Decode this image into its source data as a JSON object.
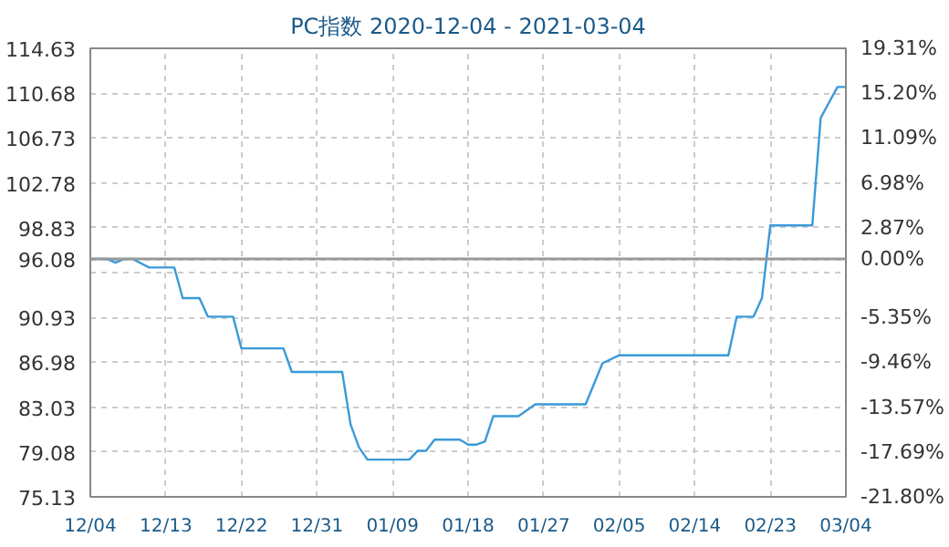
{
  "chart_data": {
    "type": "line",
    "title": "PC指数 2020-12-04 - 2021-03-04",
    "x": [
      "2020-12-04",
      "2020-12-06",
      "2020-12-07",
      "2020-12-08",
      "2020-12-09",
      "2020-12-11",
      "2020-12-14",
      "2020-12-15",
      "2020-12-17",
      "2020-12-18",
      "2020-12-21",
      "2020-12-22",
      "2020-12-27",
      "2020-12-28",
      "2021-01-03",
      "2021-01-04",
      "2021-01-05",
      "2021-01-06",
      "2021-01-11",
      "2021-01-12",
      "2021-01-13",
      "2021-01-14",
      "2021-01-17",
      "2021-01-18",
      "2021-01-19",
      "2021-01-20",
      "2021-01-21",
      "2021-01-24",
      "2021-01-26",
      "2021-02-01",
      "2021-02-03",
      "2021-02-05",
      "2021-02-18",
      "2021-02-19",
      "2021-02-21",
      "2021-02-22",
      "2021-02-23",
      "2021-02-28",
      "2021-03-01",
      "2021-03-02",
      "2021-03-03",
      "2021-03-04"
    ],
    "series": [
      {
        "color": "#3a9ad9",
        "values": [
          96.08,
          96.08,
          95.75,
          96.08,
          96.08,
          95.33,
          95.33,
          92.63,
          92.63,
          91.0,
          91.0,
          88.21,
          88.21,
          86.13,
          86.13,
          81.5,
          79.5,
          78.41,
          78.41,
          79.19,
          79.19,
          80.17,
          80.17,
          79.73,
          79.73,
          80.0,
          82.24,
          82.24,
          83.28,
          83.28,
          86.89,
          87.6,
          87.6,
          91.0,
          91.0,
          92.63,
          99.04,
          99.04,
          108.5,
          109.87,
          111.23,
          111.23
        ]
      }
    ],
    "xlim": [
      "2020-12-04",
      "2021-03-04"
    ],
    "xticks": [
      {
        "value": "2020-12-04",
        "label": "12/04"
      },
      {
        "value": "2020-12-13",
        "label": "12/13"
      },
      {
        "value": "2020-12-22",
        "label": "12/22"
      },
      {
        "value": "2020-12-31",
        "label": "12/31"
      },
      {
        "value": "2021-01-09",
        "label": "01/09"
      },
      {
        "value": "2021-01-18",
        "label": "01/18"
      },
      {
        "value": "2021-01-27",
        "label": "01/27"
      },
      {
        "value": "2021-02-05",
        "label": "02/05"
      },
      {
        "value": "2021-02-14",
        "label": "02/14"
      },
      {
        "value": "2021-02-23",
        "label": "02/23"
      },
      {
        "value": "2021-03-04",
        "label": "03/04"
      }
    ],
    "ylim": [
      75.13,
      114.63
    ],
    "yticks": [
      114.63,
      110.68,
      106.73,
      102.78,
      98.83,
      96.08,
      {
        "value": 94.88,
        "label": null
      },
      90.93,
      86.98,
      83.03,
      79.08,
      75.13
    ],
    "y2lim": [
      -21.8,
      19.31
    ],
    "y2ticks": [
      {
        "value": 19.31,
        "label": "19.31%"
      },
      {
        "value": 15.2,
        "label": "15.20%"
      },
      {
        "value": 11.09,
        "label": "11.09%"
      },
      {
        "value": 6.98,
        "label": "6.98%"
      },
      {
        "value": 2.87,
        "label": "2.87%"
      },
      {
        "value": 0,
        "label": "0.00%"
      },
      {
        "value": -5.35,
        "label": "-5.35%"
      },
      {
        "value": -9.46,
        "label": "-9.46%"
      },
      {
        "value": -13.57,
        "label": "-13.57%"
      },
      {
        "value": -17.69,
        "label": "-17.69%"
      },
      {
        "value": -21.8,
        "label": "-21.80%"
      }
    ],
    "ref_lines": [
      {
        "axis": "y",
        "value": 96.08,
        "color": "#999999",
        "line_style": "solid"
      }
    ],
    "grid": true,
    "marker": "none",
    "line_style": "solid"
  }
}
